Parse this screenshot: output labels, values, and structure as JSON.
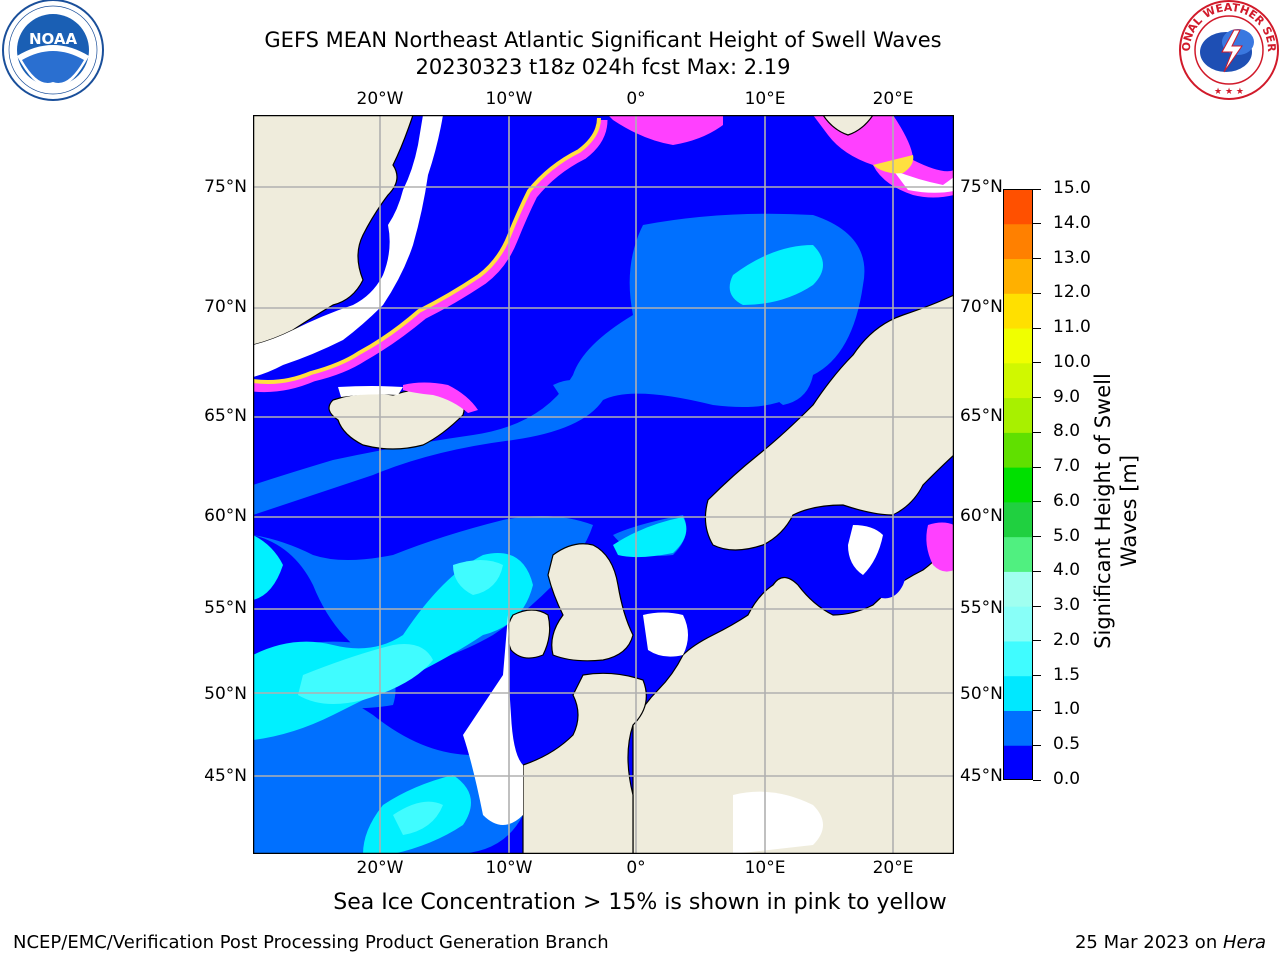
{
  "title": {
    "line1": "GEFS MEAN Northeast Atlantic Significant Height of Swell Waves",
    "line2": "20230323 t18z 024h fcst   Max: 2.19"
  },
  "logos": {
    "left": {
      "text": "NOAA",
      "ring_text": "NATIONAL OCEANIC AND ATMOSPHERIC ADMINISTRATION · U.S. DEPARTMENT OF COMMERCE",
      "color": "#1a5fb4"
    },
    "right": {
      "ring_text": "NATIONAL WEATHER SERVICE",
      "color": "#d11a2a"
    }
  },
  "axes": {
    "lon_ticks": [
      "20°W",
      "10°W",
      "0°",
      "10°E",
      "20°E"
    ],
    "lat_ticks": [
      "75°N",
      "70°N",
      "65°N",
      "60°N",
      "55°N",
      "50°N",
      "45°N"
    ]
  },
  "colorbar": {
    "label": "Significant Height of Swell Waves [m]",
    "ticks": [
      "15.0",
      "14.0",
      "13.0",
      "12.0",
      "11.0",
      "10.0",
      "9.0",
      "8.0",
      "7.0",
      "6.0",
      "5.0",
      "4.0",
      "3.0",
      "2.0",
      "1.5",
      "1.0",
      "0.5",
      "0.0"
    ],
    "colors": [
      "#0000ff",
      "#0070ff",
      "#00e8ff",
      "#40fcff",
      "#88fff8",
      "#a0fff0",
      "#50f080",
      "#20d040",
      "#00e000",
      "#60e000",
      "#a8f000",
      "#d0f800",
      "#f0ff00",
      "#ffe000",
      "#ffb000",
      "#ff8000",
      "#ff5000",
      "#ff2000",
      "#ff0000"
    ]
  },
  "legend_note": "Sea Ice Concentration > 15% is shown in pink to yellow",
  "footer": {
    "left": "NCEP/EMC/Verification Post Processing Product Generation Branch",
    "right_date": "25 Mar 2023 on ",
    "right_host": "Hera"
  },
  "map_colors": {
    "ocean_deep": "#0000ff",
    "ocean_mid": "#0070ff",
    "swell_high": "#00f0ff",
    "swell_higher": "#40fcff",
    "land": "#efecdc",
    "ice_pink": "#ff40ff",
    "ice_yellow": "#ffe040",
    "no_data": "#ffffff"
  }
}
